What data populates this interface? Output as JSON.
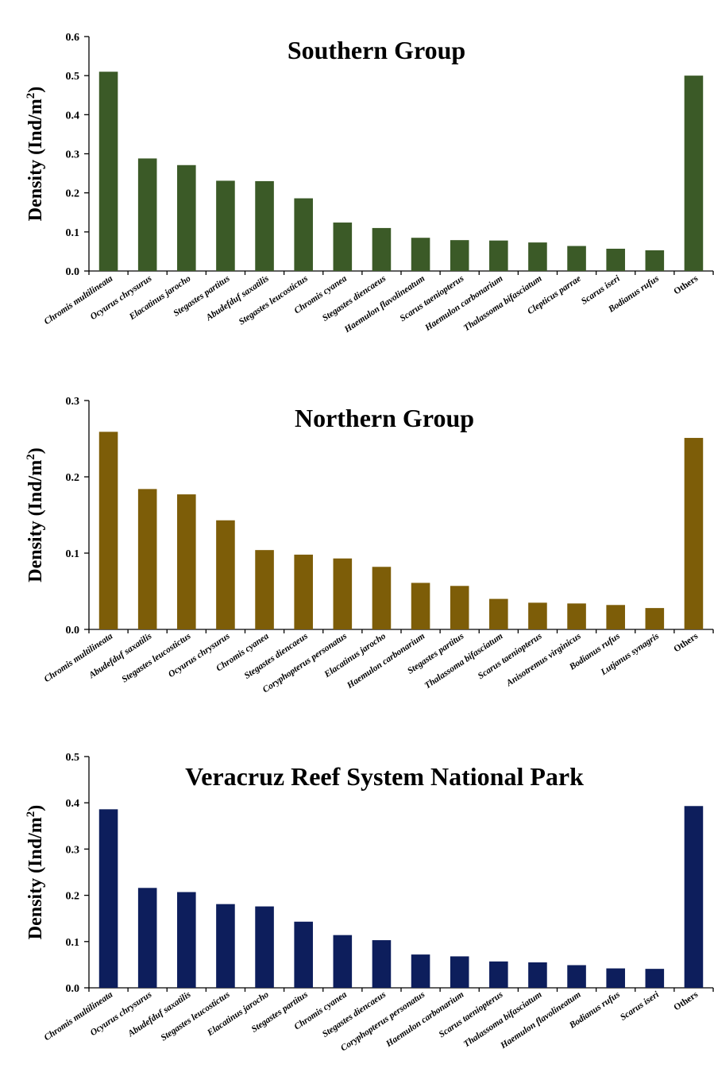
{
  "chart_data": [
    {
      "type": "bar",
      "title": "Southern Group",
      "ylabel": "Density (Ind/m",
      "ylabel_sup": "2",
      "ylabel_close": ")",
      "ylim": [
        0,
        0.6
      ],
      "yticks": [
        "0.0",
        "0.1",
        "0.2",
        "0.3",
        "0.4",
        "0.5",
        "0.6"
      ],
      "color": "#3b5a27",
      "categories": [
        "Chromis multilineata",
        "Ocyurus chrysurus",
        "Elacatinus jarocho",
        "Stegastes partitus",
        "Abudefduf saxatilis",
        "Stegastes leucostictus",
        "Chromis cyanea",
        "Stegastes diencaeus",
        "Haemulon flavolineatum",
        "Scarus taeniopterus",
        "Haemulon carbonarium",
        "Thalassoma bifasciatum",
        "Clepticus parrae",
        "Scarus iseri",
        "Bodianus rufus",
        "Others"
      ],
      "values": [
        0.51,
        0.288,
        0.271,
        0.231,
        0.23,
        0.186,
        0.124,
        0.11,
        0.085,
        0.079,
        0.078,
        0.073,
        0.064,
        0.057,
        0.053,
        0.5
      ]
    },
    {
      "type": "bar",
      "title": "Northern Group",
      "ylabel": "Density (Ind/m",
      "ylabel_sup": "2",
      "ylabel_close": ")",
      "ylim": [
        0,
        0.3
      ],
      "yticks": [
        "0.0",
        "0.1",
        "0.2",
        "0.3"
      ],
      "color": "#7d5d08",
      "categories": [
        "Chromis multilineata",
        "Abudefduf saxatilis",
        "Stegastes leucostictus",
        "Ocyurus chrysurus",
        "Chromis cyanea",
        "Stegastes diencaeus",
        "Coryphopterus personatus",
        "Elacatinus jarocho",
        "Haemulon carbonarium",
        "Stegastes partitus",
        "Thalassoma bifasciatum",
        "Scarus taeniopterus",
        "Anisotremus virginicus",
        "Bodianus rufus",
        "Lutjanus synagris",
        "Others"
      ],
      "values": [
        0.259,
        0.184,
        0.177,
        0.143,
        0.104,
        0.098,
        0.093,
        0.082,
        0.061,
        0.057,
        0.04,
        0.035,
        0.034,
        0.032,
        0.028,
        0.251
      ]
    },
    {
      "type": "bar",
      "title": "Veracruz Reef System National Park",
      "ylabel": "Density (Ind/m",
      "ylabel_sup": "2",
      "ylabel_close": ")",
      "ylim": [
        0,
        0.5
      ],
      "yticks": [
        "0.0",
        "0.1",
        "0.2",
        "0.3",
        "0.4",
        "0.5"
      ],
      "color": "#0d1e5c",
      "categories": [
        "Chromis multilineata",
        "Ocyurus chrysurus",
        "Abudefduf saxatilis",
        "Stegastes leucostictus",
        "Elacatinus jarocho",
        "Stegastes partitus",
        "Chromis cyanea",
        "Stegastes diencaeus",
        "Coryphopterus personatus",
        "Haemulon carbonarium",
        "Scarus taeniopterus",
        "Thalassoma bifasciatum",
        "Haemulon flavolineatum",
        "Bodianus rufus",
        "Scarus iseri",
        "Others"
      ],
      "values": [
        0.386,
        0.216,
        0.207,
        0.181,
        0.176,
        0.143,
        0.114,
        0.103,
        0.072,
        0.068,
        0.057,
        0.055,
        0.049,
        0.042,
        0.041,
        0.393
      ]
    }
  ]
}
